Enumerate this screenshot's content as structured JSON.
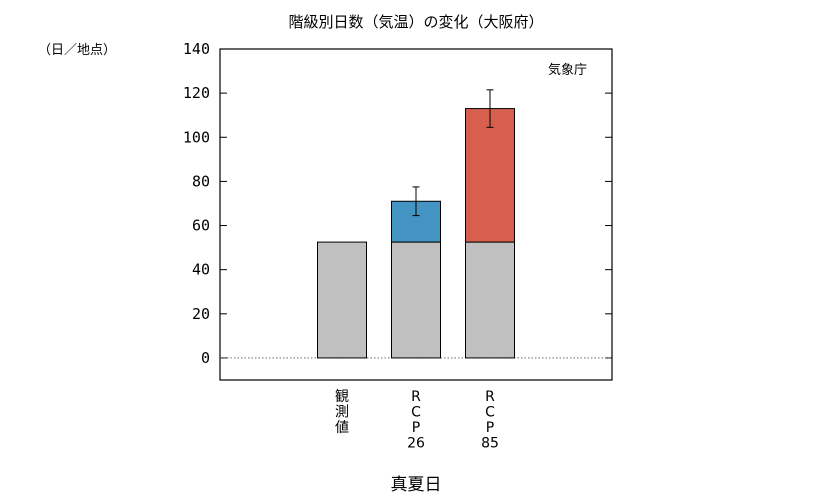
{
  "chart_data": {
    "type": "bar",
    "title": "階級別日数（気温）の変化（大阪府）",
    "unit_label": "（日／地点）",
    "source_label": "気象庁",
    "xlabel": "真夏日",
    "ylim": [
      -10,
      140
    ],
    "yticks": [
      0,
      20,
      40,
      60,
      80,
      100,
      120,
      140
    ],
    "baseline_style": "dotted",
    "categories": [
      {
        "label_lines": [
          "観",
          "測",
          "値"
        ]
      },
      {
        "label_lines": [
          "R",
          "C",
          "P",
          "26"
        ]
      },
      {
        "label_lines": [
          "R",
          "C",
          "P",
          "85"
        ]
      }
    ],
    "series": [
      {
        "role": "observed-base",
        "color": "#c0c0c0",
        "values": [
          52.5,
          52.5,
          52.5
        ]
      },
      {
        "role": "increase",
        "colors": [
          null,
          "#4393c3",
          "#d6604d"
        ],
        "values": [
          0,
          18.5,
          60.5
        ]
      }
    ],
    "error_bars": [
      null,
      {
        "center": 71,
        "low": 64.5,
        "high": 77.5
      },
      {
        "center": 113,
        "low": 104.5,
        "high": 121.5
      }
    ]
  }
}
